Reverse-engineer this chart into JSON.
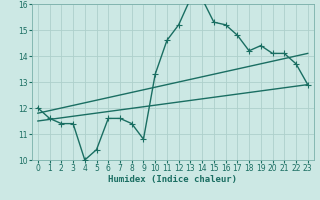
{
  "xlabel": "Humidex (Indice chaleur)",
  "xlim": [
    -0.5,
    23.5
  ],
  "ylim": [
    10,
    16
  ],
  "yticks": [
    10,
    11,
    12,
    13,
    14,
    15,
    16
  ],
  "xticks": [
    0,
    1,
    2,
    3,
    4,
    5,
    6,
    7,
    8,
    9,
    10,
    11,
    12,
    13,
    14,
    15,
    16,
    17,
    18,
    19,
    20,
    21,
    22,
    23
  ],
  "bg_color": "#cce8e4",
  "grid_color": "#aed0cb",
  "line_color": "#1a6e62",
  "line1_x": [
    0,
    1,
    2,
    3,
    4,
    5,
    6,
    7,
    8,
    9,
    10,
    11,
    12,
    13,
    14,
    15,
    16,
    17,
    18,
    19,
    20,
    21,
    22,
    23
  ],
  "line1_y": [
    12.0,
    11.6,
    11.4,
    11.4,
    10.0,
    10.4,
    11.6,
    11.6,
    11.4,
    10.8,
    13.3,
    14.6,
    15.2,
    16.2,
    16.2,
    15.3,
    15.2,
    14.8,
    14.2,
    14.4,
    14.1,
    14.1,
    13.7,
    12.9
  ],
  "line2_x": [
    0,
    23
  ],
  "line2_y": [
    11.8,
    14.1
  ],
  "line3_x": [
    0,
    23
  ],
  "line3_y": [
    11.5,
    12.9
  ],
  "marker": "+",
  "markersize": 4,
  "linewidth": 1.0,
  "tick_fontsize": 5.5,
  "xlabel_fontsize": 6.5
}
